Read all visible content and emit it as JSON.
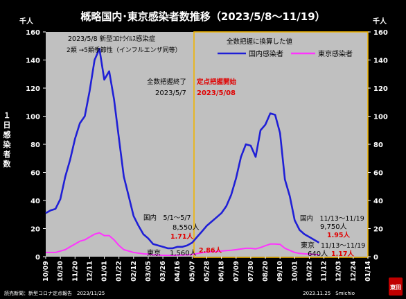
{
  "title": "概略国内･東京感染者数推移（2023/5/8～11/19）",
  "unit_left": "千人",
  "unit_right": "千人",
  "ylabel": "１日感染者数",
  "footer_left": "読売新聞：新型コロナ定点報告　2023/11/25",
  "footer_right": "2023.11.25　Smichio",
  "logo_text": "東田",
  "annotations": {
    "classification_line1": "2023/5/8 新型ｺﾛﾅｳｲﾙｽ感染症",
    "classification_line2": "2類 →5類季節性（インフルエンザ同等）",
    "full_count_end": "全数把握終了",
    "full_count_end_date": "2023/5/7",
    "sentinel_start": "定点把握開始",
    "sentinel_start_date": "2023/5/08",
    "converted_note": "全数把握に換算した値",
    "domestic_early_label": "国内　5/1～5/7",
    "domestic_early_value": "8,550人",
    "domestic_early_sentinel": "1.71人",
    "tokyo_early_label": "東京",
    "tokyo_early_value": "1,560人",
    "tokyo_early_sentinel": "2.86人",
    "domestic_late_label": "国内　11/13～11/19",
    "domestic_late_value": "9,750人",
    "domestic_late_sentinel": "1.95人",
    "tokyo_late_label": "東京",
    "tokyo_late_period": "11/13～11/19",
    "tokyo_late_value": "640人",
    "tokyo_late_sentinel": "1.17人"
  },
  "colors": {
    "domestic": "#1f1fd6",
    "tokyo": "#ff33ff",
    "plot_bg": "#c0c0c0",
    "highlight_border": "#f0b400",
    "sentinel_text": "#e00000"
  },
  "chart_data": {
    "type": "line",
    "title": "概略国内･東京感染者数推移（2023/5/8～11/19）",
    "ylabel": "１日感染者数",
    "yunit": "千人",
    "ylim": [
      0,
      160
    ],
    "yticks": [
      0,
      20,
      40,
      60,
      80,
      100,
      120,
      140,
      160
    ],
    "grid": false,
    "legend": "top-right",
    "x_tick_labels": [
      "10/09",
      "10/30",
      "11/20",
      "12/11",
      "01/01",
      "01/22",
      "02/12",
      "03/05",
      "03/26",
      "04/16",
      "05/07",
      "05/28",
      "06/18",
      "07/09",
      "07/30",
      "08/20",
      "09/10",
      "10/01",
      "10/22",
      "11/12",
      "12/03",
      "12/24",
      "01/14"
    ],
    "x_index_range": [
      0,
      66
    ],
    "sentinel_start_index": 30,
    "series": [
      {
        "name": "国内感染者",
        "x": [
          0,
          1,
          2,
          3,
          4,
          5,
          6,
          7,
          8,
          9,
          10,
          11,
          12,
          13,
          14,
          15,
          16,
          17,
          18,
          19,
          20,
          21,
          22,
          23,
          24,
          25,
          26,
          27,
          28,
          29,
          30,
          31,
          32,
          33,
          34,
          35,
          36,
          37,
          38,
          39,
          40,
          41,
          42,
          43,
          44,
          45,
          46,
          47,
          48,
          49,
          50,
          51,
          52,
          53,
          54,
          55,
          56
        ],
        "values": [
          31,
          33,
          34,
          41,
          57,
          69,
          84,
          95,
          100,
          118,
          140,
          148,
          126,
          132,
          112,
          84,
          57,
          43,
          29,
          22,
          16,
          13,
          9,
          8,
          7,
          6,
          6,
          7,
          7,
          8,
          10,
          14,
          18,
          22,
          25,
          28,
          31,
          36,
          44,
          56,
          71,
          80,
          79,
          71,
          90,
          94,
          102,
          101,
          88,
          55,
          43,
          26,
          19,
          16,
          14,
          12,
          10
        ]
      },
      {
        "name": "東京感染者",
        "x": [
          0,
          1,
          2,
          3,
          4,
          5,
          6,
          7,
          8,
          9,
          10,
          11,
          12,
          13,
          14,
          15,
          16,
          17,
          18,
          19,
          20,
          21,
          22,
          23,
          24,
          25,
          26,
          27,
          28,
          29,
          30,
          31,
          32,
          33,
          34,
          35,
          36,
          37,
          38,
          39,
          40,
          41,
          42,
          43,
          44,
          45,
          46,
          47,
          48,
          49,
          50,
          51,
          52,
          53,
          54,
          55,
          56
        ],
        "values": [
          3,
          3,
          3,
          4,
          5,
          7,
          9,
          11,
          12,
          14,
          16,
          17,
          15,
          15,
          12,
          8,
          5,
          4,
          3,
          2.5,
          2,
          1.8,
          1.3,
          1.2,
          1,
          1,
          1,
          1.1,
          1.2,
          1.3,
          1.6,
          2.2,
          2.8,
          3.2,
          3.5,
          3.7,
          4,
          4.3,
          4.6,
          5,
          5.5,
          6,
          6,
          5.6,
          6.5,
          7.8,
          9,
          9,
          8.8,
          6,
          4.5,
          3,
          2.3,
          2,
          1.8,
          1.6,
          1.4
        ]
      }
    ]
  }
}
